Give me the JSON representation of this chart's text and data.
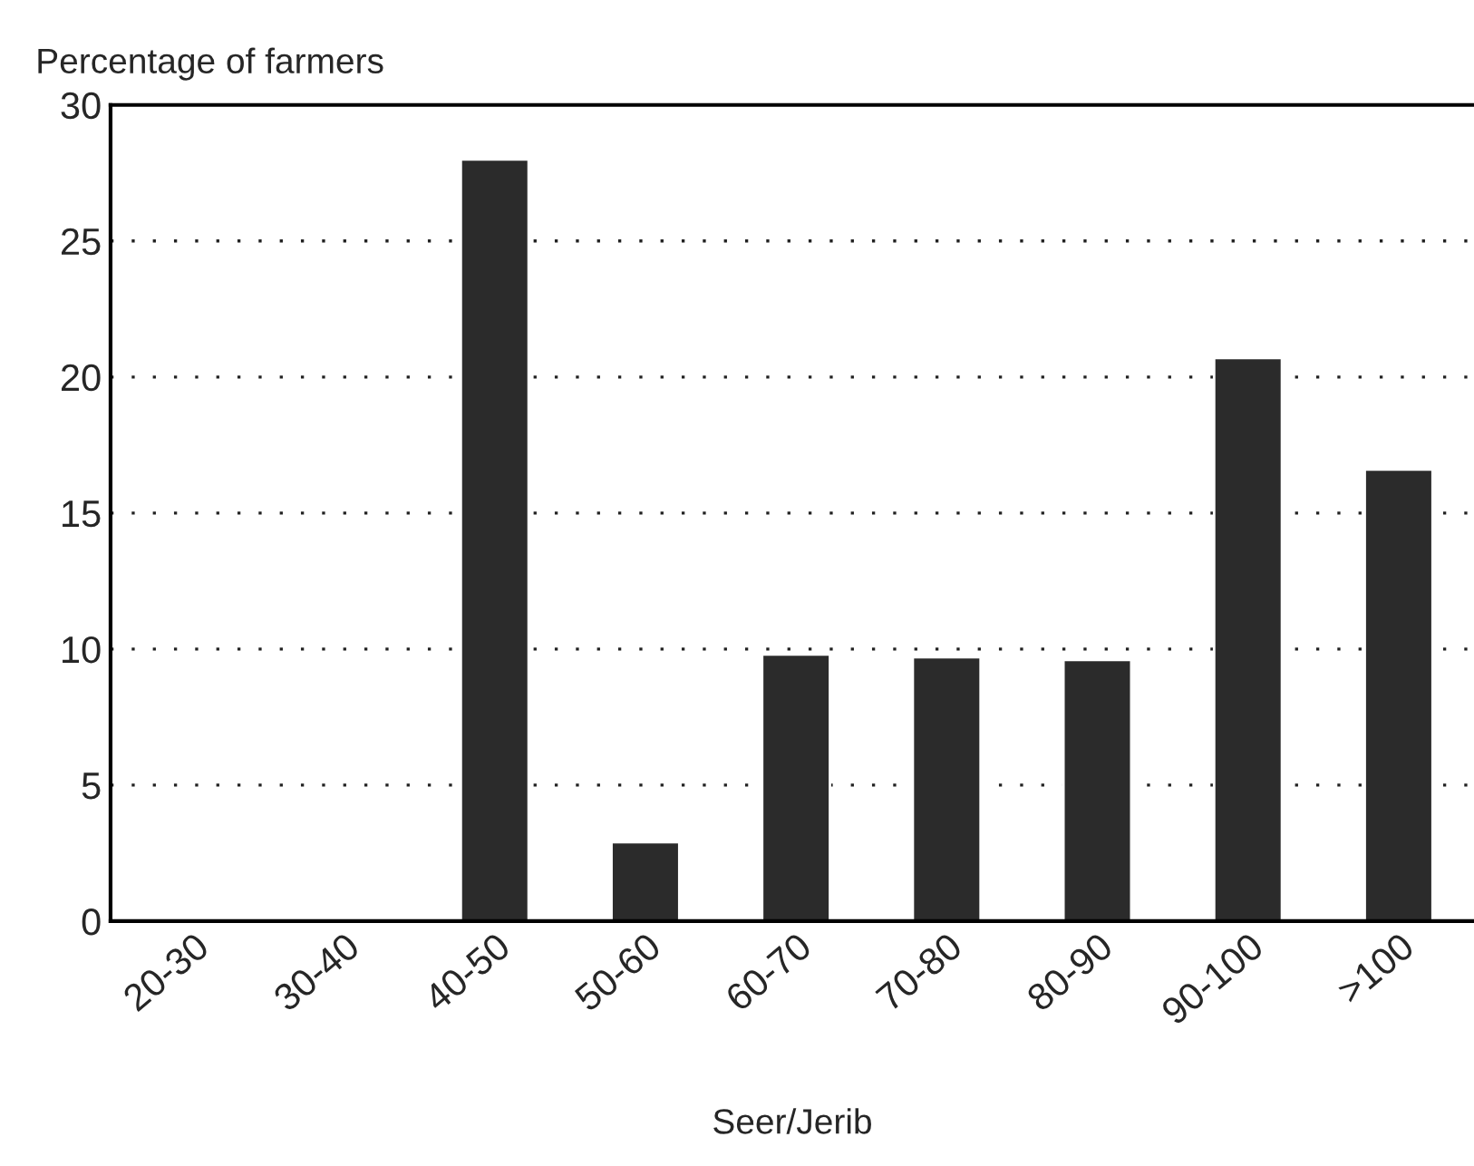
{
  "chart_data": {
    "type": "bar",
    "xlabel": "Seer/Jerib",
    "ylabel": "Percentage of farmers",
    "categories": [
      "20-30",
      "30-40",
      "40-50",
      "50-60",
      "60-70",
      "70-80",
      "80-90",
      "90-100",
      ">100"
    ],
    "values": [
      null,
      null,
      28,
      2.9,
      9.8,
      9.7,
      9.6,
      20.7,
      16.6
    ],
    "color": "#2b2b2b",
    "ylim": [
      0,
      30
    ],
    "yticks": [
      0,
      5,
      10,
      15,
      20,
      25,
      30
    ],
    "grid": "y"
  }
}
